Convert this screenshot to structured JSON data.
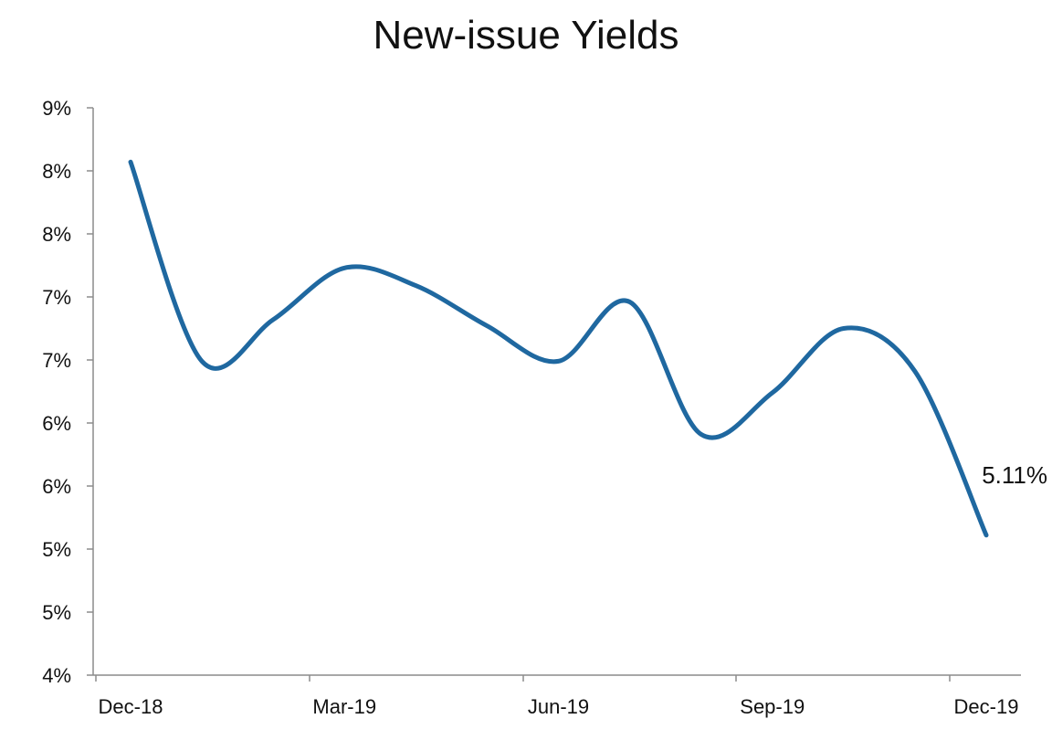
{
  "chart_data": {
    "type": "line",
    "title": "New-issue Yields",
    "xlabel": "",
    "ylabel": "",
    "ylim": [
      4.0,
      8.5
    ],
    "y_ticks": [
      4.0,
      4.5,
      5.0,
      5.5,
      6.0,
      6.5,
      7.0,
      7.5,
      8.0,
      8.5
    ],
    "y_tick_labels": [
      "4%",
      "5%",
      "5%",
      "6%",
      "6%",
      "7%",
      "7%",
      "8%",
      "8%",
      "9%"
    ],
    "x_tick_labels": [
      "Dec-18",
      "Mar-19",
      "Jun-19",
      "Sep-19",
      "Dec-19"
    ],
    "x": [
      "Dec-18",
      "Jan-19",
      "Feb-19",
      "Mar-19",
      "Apr-19",
      "May-19",
      "Jun-19",
      "Jul-19",
      "Aug-19",
      "Sep-19",
      "Oct-19",
      "Nov-19",
      "Dec-19"
    ],
    "series": [
      {
        "name": "",
        "color": "#1F68A0",
        "values": [
          8.07,
          6.49,
          6.82,
          7.23,
          7.09,
          6.77,
          6.49,
          6.96,
          5.91,
          6.24,
          6.75,
          6.41,
          5.11
        ]
      }
    ],
    "annotations": [
      {
        "text": "5.11%",
        "point": "Dec-19"
      }
    ],
    "grid": false,
    "legend": "none"
  }
}
